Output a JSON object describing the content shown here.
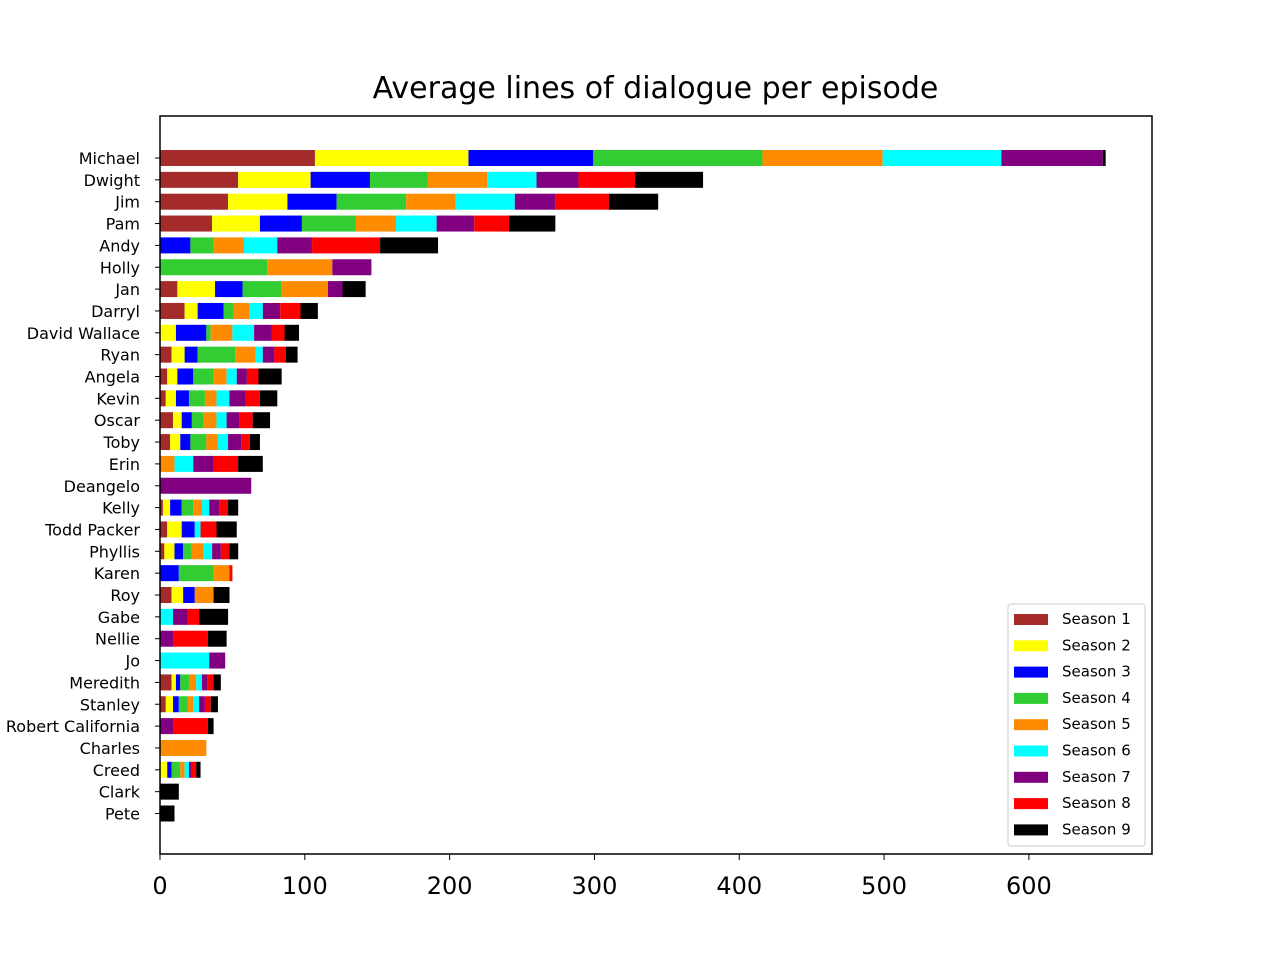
{
  "chart_data": {
    "type": "bar",
    "orientation": "horizontal",
    "stacked": true,
    "title": "Average lines of dialogue per episode",
    "xlabel": "",
    "ylabel": "",
    "xlim": [
      0,
      685
    ],
    "xticks": [
      0,
      100,
      200,
      300,
      400,
      500,
      600
    ],
    "grid": false,
    "legend_position": "lower-right",
    "categories": [
      "Michael",
      "Dwight",
      "Jim",
      "Pam",
      "Andy",
      "Holly",
      "Jan",
      "Darryl",
      "David Wallace",
      "Ryan",
      "Angela",
      "Kevin",
      "Oscar",
      "Toby",
      "Erin",
      "Deangelo",
      "Kelly",
      "Todd Packer",
      "Phyllis",
      "Karen",
      "Roy",
      "Gabe",
      "Nellie",
      "Jo",
      "Meredith",
      "Stanley",
      "Robert California",
      "Charles",
      "Creed",
      "Clark",
      "Pete"
    ],
    "series": [
      {
        "name": "Season 1",
        "color": "#a52a2a",
        "values": [
          107,
          54,
          47,
          36,
          0,
          0,
          12,
          17,
          0,
          8,
          5,
          4,
          9,
          7,
          0,
          0,
          2,
          5,
          3,
          0,
          8,
          0,
          0,
          0,
          8,
          4,
          0,
          0,
          0,
          0,
          0
        ]
      },
      {
        "name": "Season 2",
        "color": "#ffff00",
        "values": [
          106,
          50,
          41,
          33,
          0,
          0,
          26,
          9,
          11,
          9,
          7,
          7,
          6,
          7,
          0,
          0,
          5,
          10,
          7,
          0,
          8,
          0,
          0,
          0,
          3,
          5,
          0,
          0,
          5,
          0,
          0
        ]
      },
      {
        "name": "Season 3",
        "color": "#0000ff",
        "values": [
          86,
          41,
          34,
          29,
          21,
          0,
          19,
          18,
          21,
          9,
          11,
          9,
          7,
          7,
          0,
          0,
          8,
          9,
          6,
          13,
          8,
          0,
          0,
          0,
          3,
          4,
          0,
          0,
          3,
          0,
          0
        ]
      },
      {
        "name": "Season 4",
        "color": "#32cd32",
        "values": [
          117,
          40,
          48,
          37,
          16,
          74,
          27,
          7,
          3,
          26,
          14,
          11,
          8,
          11,
          0,
          0,
          8,
          0,
          6,
          24,
          0,
          0,
          0,
          0,
          6,
          6,
          0,
          0,
          6,
          0,
          0
        ]
      },
      {
        "name": "Season 5",
        "color": "#ff8c00",
        "values": [
          83,
          41,
          34,
          28,
          21,
          45,
          32,
          11,
          15,
          14,
          9,
          8,
          9,
          8,
          10,
          0,
          6,
          0,
          8,
          11,
          13,
          0,
          0,
          0,
          5,
          4,
          0,
          32,
          3,
          0,
          0
        ]
      },
      {
        "name": "Season 6",
        "color": "#00ffff",
        "values": [
          82,
          34,
          41,
          28,
          23,
          0,
          0,
          9,
          15,
          5,
          7,
          9,
          7,
          7,
          13,
          0,
          5,
          4,
          6,
          0,
          0,
          9,
          0,
          34,
          4,
          4,
          0,
          0,
          3,
          0,
          0
        ]
      },
      {
        "name": "Season 7",
        "color": "#800080",
        "values": [
          70,
          29,
          28,
          26,
          24,
          27,
          10,
          12,
          12,
          8,
          7,
          11,
          9,
          9,
          14,
          63,
          7,
          0,
          6,
          0,
          0,
          10,
          9,
          11,
          4,
          4,
          9,
          0,
          2,
          0,
          0
        ]
      },
      {
        "name": "Season 8",
        "color": "#ff0000",
        "values": [
          0,
          39,
          37,
          24,
          47,
          0,
          0,
          14,
          9,
          8,
          8,
          10,
          9,
          6,
          17,
          0,
          6,
          11,
          6,
          2,
          0,
          8,
          24,
          0,
          4,
          4,
          24,
          0,
          3,
          0,
          0
        ]
      },
      {
        "name": "Season 9",
        "color": "#000000",
        "values": [
          2,
          47,
          34,
          32,
          40,
          0,
          16,
          12,
          10,
          8,
          16,
          12,
          12,
          7,
          17,
          0,
          7,
          14,
          6,
          0,
          11,
          20,
          13,
          0,
          5,
          5,
          4,
          0,
          3,
          13,
          10
        ]
      }
    ]
  }
}
